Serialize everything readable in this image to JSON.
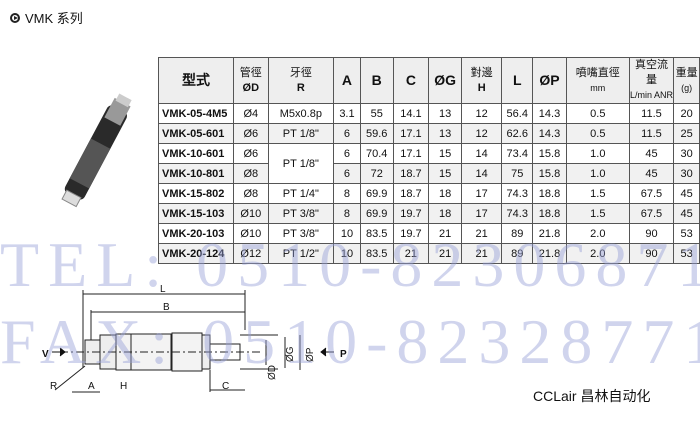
{
  "title": "VMK 系列",
  "table": {
    "headers": [
      {
        "l1": "型式",
        "l2": ""
      },
      {
        "l1": "管徑",
        "l2": "ØD"
      },
      {
        "l1": "牙徑",
        "l2": "R"
      },
      {
        "l1": "A",
        "l2": ""
      },
      {
        "l1": "B",
        "l2": ""
      },
      {
        "l1": "C",
        "l2": ""
      },
      {
        "l1": "ØG",
        "l2": ""
      },
      {
        "l1": "對邊",
        "l2": "H"
      },
      {
        "l1": "L",
        "l2": ""
      },
      {
        "l1": "ØP",
        "l2": ""
      },
      {
        "l1": "噴嘴直徑",
        "l2": "mm"
      },
      {
        "l1": "真空流量",
        "l2": "L/min ANR"
      },
      {
        "l1": "重量",
        "l2": "(g)"
      }
    ],
    "rows": [
      [
        "VMK-05-4M5",
        "Ø4",
        "M5x0.8p",
        "3.1",
        "55",
        "14.1",
        "13",
        "12",
        "56.4",
        "14.3",
        "0.5",
        "11.5",
        "20"
      ],
      [
        "VMK-05-601",
        "Ø6",
        "PT 1/8\"",
        "6",
        "59.6",
        "17.1",
        "13",
        "12",
        "62.6",
        "14.3",
        "0.5",
        "11.5",
        "25"
      ],
      [
        "VMK-10-601",
        "Ø6",
        "PT 1/8\"",
        "6",
        "70.4",
        "17.1",
        "15",
        "14",
        "73.4",
        "15.8",
        "1.0",
        "45",
        "30"
      ],
      [
        "VMK-10-801",
        "Ø8",
        "",
        "6",
        "72",
        "18.7",
        "15",
        "14",
        "75",
        "15.8",
        "1.0",
        "45",
        "30"
      ],
      [
        "VMK-15-802",
        "Ø8",
        "PT 1/4\"",
        "8",
        "69.9",
        "18.7",
        "18",
        "17",
        "74.3",
        "18.8",
        "1.5",
        "67.5",
        "45"
      ],
      [
        "VMK-15-103",
        "Ø10",
        "PT 3/8\"",
        "8",
        "69.9",
        "19.7",
        "18",
        "17",
        "74.3",
        "18.8",
        "1.5",
        "67.5",
        "45"
      ],
      [
        "VMK-20-103",
        "Ø10",
        "PT 3/8\"",
        "10",
        "83.5",
        "19.7",
        "21",
        "21",
        "89",
        "21.8",
        "2.0",
        "90",
        "53"
      ],
      [
        "VMK-20-124",
        "Ø12",
        "PT 1/2\"",
        "10",
        "83.5",
        "21",
        "21",
        "21",
        "89",
        "21.8",
        "2.0",
        "90",
        "53"
      ]
    ]
  },
  "watermark": {
    "tel": "TEL: 0510-82306871",
    "fax": "FAX: 0510-82328771"
  },
  "diagram": {
    "L": "L",
    "B": "B",
    "V": "V",
    "P": "P",
    "R": "R",
    "A": "A",
    "H": "H",
    "C": "C",
    "D": "ØD",
    "G": "ØG",
    "Pd": "ØP"
  },
  "brand": "CCLair 昌林自动化"
}
